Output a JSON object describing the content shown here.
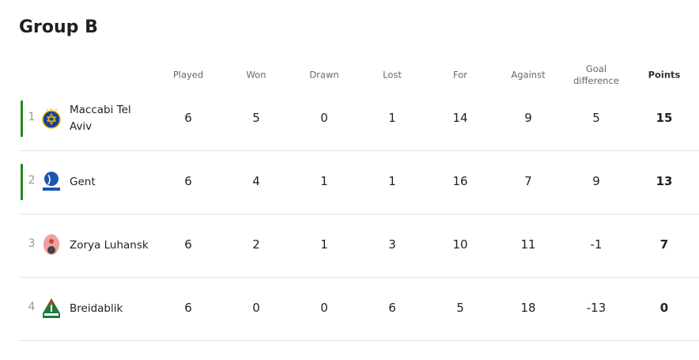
{
  "title": "Group B",
  "headers": {
    "played": "Played",
    "won": "Won",
    "drawn": "Drawn",
    "lost": "Lost",
    "for": "For",
    "against": "Against",
    "gd": "Goal difference",
    "points": "Points"
  },
  "qualified_color": "#1f8a1f",
  "rows": [
    {
      "pos": "1",
      "team": "Maccabi Tel Aviv",
      "logo": "maccabi-tel-aviv-crest-icon",
      "qualified": true,
      "played": "6",
      "won": "5",
      "drawn": "0",
      "lost": "1",
      "for": "14",
      "against": "9",
      "gd": "5",
      "points": "15"
    },
    {
      "pos": "2",
      "team": "Gent",
      "logo": "kaa-gent-crest-icon",
      "qualified": true,
      "played": "6",
      "won": "4",
      "drawn": "1",
      "lost": "1",
      "for": "16",
      "against": "7",
      "gd": "9",
      "points": "13"
    },
    {
      "pos": "3",
      "team": "Zorya Luhansk",
      "logo": "zorya-luhansk-crest-icon",
      "qualified": false,
      "played": "6",
      "won": "2",
      "drawn": "1",
      "lost": "3",
      "for": "10",
      "against": "11",
      "gd": "-1",
      "points": "7"
    },
    {
      "pos": "4",
      "team": "Breidablik",
      "logo": "breidablik-crest-icon",
      "qualified": false,
      "played": "6",
      "won": "0",
      "drawn": "0",
      "lost": "6",
      "for": "5",
      "against": "18",
      "gd": "-13",
      "points": "0"
    }
  ]
}
